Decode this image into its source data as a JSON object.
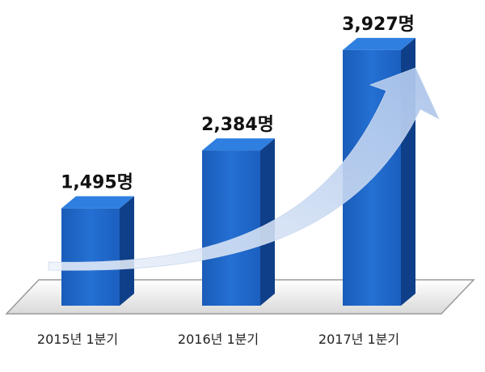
{
  "chart_data": {
    "type": "bar",
    "categories": [
      "2015년 1분기",
      "2016년 1분기",
      "2017년 1분기"
    ],
    "values": [
      1495,
      2384,
      3927
    ],
    "value_labels": [
      "1,495명",
      "2,384명",
      "3,927명"
    ],
    "ylim": [
      0,
      4000
    ],
    "grid": false,
    "legend": "none",
    "style": "3d",
    "trend_arrow": "upward"
  },
  "colors": {
    "bar_front": "#1d63c4",
    "bar_side": "#0f3f88",
    "bar_top": "#2f7fe0",
    "floor_stroke": "#9a9a9a",
    "arrow": "#b8cfee"
  }
}
